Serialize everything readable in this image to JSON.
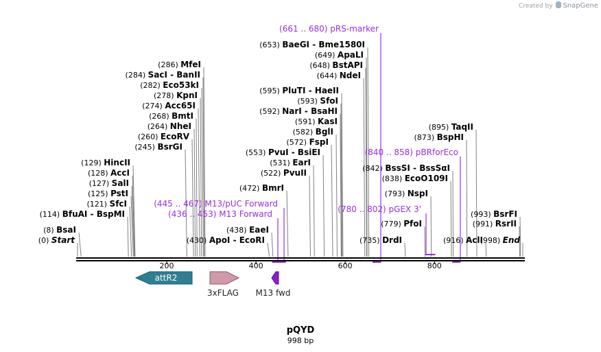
{
  "credit": {
    "prefix": "Created by",
    "brand": "SnapGene"
  },
  "plasmid": {
    "name": "pQYD",
    "length_label": "998 bp",
    "length": 998
  },
  "axis": {
    "start": 0,
    "end": 998,
    "ticks": [
      200,
      400,
      600,
      800
    ]
  },
  "colors": {
    "primer": "#9a2ede",
    "attr": "#2f7f93",
    "flag": "#d09aaa",
    "m13": "#8a1ed0",
    "line": "#000000"
  },
  "enzymes": [
    {
      "pos": 0,
      "name": "Start",
      "label_pos": "(0)",
      "italic": true,
      "x": 113,
      "ylab": 350
    },
    {
      "pos": 8,
      "name": "BsaI",
      "label_pos": "(8)",
      "x": 115,
      "ylab": 335
    },
    {
      "pos": 114,
      "name": "BfuAI  -  BspMI",
      "label_pos": "(114)",
      "x": 186,
      "ylab": 312
    },
    {
      "pos": 121,
      "name": "SfcI",
      "label_pos": "(121)",
      "x": 189,
      "ylab": 297
    },
    {
      "pos": 125,
      "name": "PstI",
      "label_pos": "(125)",
      "x": 191,
      "ylab": 282
    },
    {
      "pos": 127,
      "name": "SalI",
      "label_pos": "(127)",
      "x": 192,
      "ylab": 267
    },
    {
      "pos": 128,
      "name": "AccI",
      "label_pos": "(128)",
      "x": 193,
      "ylab": 252
    },
    {
      "pos": 129,
      "name": "HincII",
      "label_pos": "(129)",
      "x": 194,
      "ylab": 237
    },
    {
      "pos": 245,
      "name": "BsrGI",
      "label_pos": "(245)",
      "x": 270,
      "ylab": 214
    },
    {
      "pos": 260,
      "name": "EcoRV",
      "label_pos": "(260)",
      "x": 280,
      "ylab": 199
    },
    {
      "pos": 264,
      "name": "NheI",
      "label_pos": "(264)",
      "x": 283,
      "ylab": 184
    },
    {
      "pos": 268,
      "name": "BmtI",
      "label_pos": "(268)",
      "x": 286,
      "ylab": 169
    },
    {
      "pos": 274,
      "name": "Acc65I",
      "label_pos": "(274)",
      "x": 289,
      "ylab": 154
    },
    {
      "pos": 278,
      "name": "KpnI",
      "label_pos": "(278)",
      "x": 292,
      "ylab": 139
    },
    {
      "pos": 282,
      "name": "Eco53kI",
      "label_pos": "(282)",
      "x": 294,
      "ylab": 124
    },
    {
      "pos": 284,
      "name": "SacI  -  BanII",
      "label_pos": "(284)",
      "x": 296,
      "ylab": 109
    },
    {
      "pos": 286,
      "name": "MfeI",
      "label_pos": "(286)",
      "x": 297,
      "ylab": 94
    },
    {
      "pos": 430,
      "name": "ApoI  -  EcoRI",
      "label_pos": "(430)",
      "x": 390,
      "ylab": 350
    },
    {
      "pos": 438,
      "name": "EaeI",
      "label_pos": "(438)",
      "x": 396,
      "ylab": 335
    },
    {
      "pos": 472,
      "name": "BmrI",
      "label_pos": "(472)",
      "x": 418,
      "ylab": 274
    },
    {
      "pos": 522,
      "name": "PvuII",
      "label_pos": "(522)",
      "x": 451,
      "ylab": 252
    },
    {
      "pos": 531,
      "name": "EarI",
      "label_pos": "(531)",
      "x": 457,
      "ylab": 237
    },
    {
      "pos": 553,
      "name": "PvuI  -  BsiEI",
      "label_pos": "(553)",
      "x": 471,
      "ylab": 222
    },
    {
      "pos": 572,
      "name": "FspI",
      "label_pos": "(572)",
      "x": 483,
      "ylab": 207
    },
    {
      "pos": 582,
      "name": "BglI",
      "label_pos": "(582)",
      "x": 490,
      "ylab": 192
    },
    {
      "pos": 591,
      "name": "KasI",
      "label_pos": "(591)",
      "x": 496,
      "ylab": 177
    },
    {
      "pos": 592,
      "name": "NarI  -  BsaHI",
      "label_pos": "(592)",
      "x": 496,
      "ylab": 162
    },
    {
      "pos": 593,
      "name": "SfoI",
      "label_pos": "(593)",
      "x": 497,
      "ylab": 147
    },
    {
      "pos": 595,
      "name": "PluTI  -  HaeII",
      "label_pos": "(595)",
      "x": 498,
      "ylab": 132
    },
    {
      "pos": 644,
      "name": "NdeI",
      "label_pos": "(644)",
      "x": 530,
      "ylab": 110
    },
    {
      "pos": 648,
      "name": "BstAPI",
      "label_pos": "(648)",
      "x": 533,
      "ylab": 95
    },
    {
      "pos": 649,
      "name": "ApaLI",
      "label_pos": "(649)",
      "x": 534,
      "ylab": 80
    },
    {
      "pos": 653,
      "name": "BaeGI  -  Bme1580I",
      "label_pos": "(653)",
      "x": 536,
      "ylab": 65
    },
    {
      "pos": 735,
      "name": "DrdI",
      "label_pos": "(735)",
      "x": 590,
      "ylab": 350
    },
    {
      "pos": 779,
      "name": "PfoI",
      "label_pos": "(779)",
      "x": 619,
      "ylab": 326
    },
    {
      "pos": 793,
      "name": "NspI",
      "label_pos": "(793)",
      "x": 628,
      "ylab": 282
    },
    {
      "pos": 838,
      "name": "EcoO109I",
      "label_pos": "(838)",
      "x": 657,
      "ylab": 260
    },
    {
      "pos": 842,
      "name": "BssSI  -  BssSαI",
      "label_pos": "(842)",
      "x": 660,
      "ylab": 245
    },
    {
      "pos": 873,
      "name": "BspHI",
      "label_pos": "(873)",
      "x": 680,
      "ylab": 200
    },
    {
      "pos": 895,
      "name": "TaqII",
      "label_pos": "(895)",
      "x": 694,
      "ylab": 185
    },
    {
      "pos": 916,
      "name": "AclI",
      "label_pos": "(916)",
      "x": 708,
      "ylab": 350
    },
    {
      "pos": 991,
      "name": "RsrII",
      "label_pos": "(991)",
      "x": 757,
      "ylab": 326
    },
    {
      "pos": 993,
      "name": "BsrFI",
      "label_pos": "(993)",
      "x": 758,
      "ylab": 312
    },
    {
      "pos": 998,
      "name": "End",
      "label_pos": "(998)",
      "italic": true,
      "x": 762,
      "ylab": 350
    }
  ],
  "primers": [
    {
      "label": "(661 .. 680)  pRS-marker",
      "start": 661,
      "end": 680
    },
    {
      "label": "(840 .. 858)  pBRforEco",
      "start": 840,
      "end": 858
    },
    {
      "label": "(780 .. 802)  pGEX 3'",
      "start": 780,
      "end": 802
    },
    {
      "label": "(445 .. 467)  M13/pUC Forward",
      "start": 445,
      "end": 467
    },
    {
      "label": "(436 .. 453)  M13 Forward",
      "start": 436,
      "end": 453
    }
  ],
  "features": [
    {
      "name": "attR2",
      "label_inside": true,
      "direction": "left"
    },
    {
      "name": "3xFLAG",
      "label_inside": false,
      "direction": "right"
    },
    {
      "name": "M13 fwd",
      "label_inside": false,
      "direction": "left"
    }
  ]
}
